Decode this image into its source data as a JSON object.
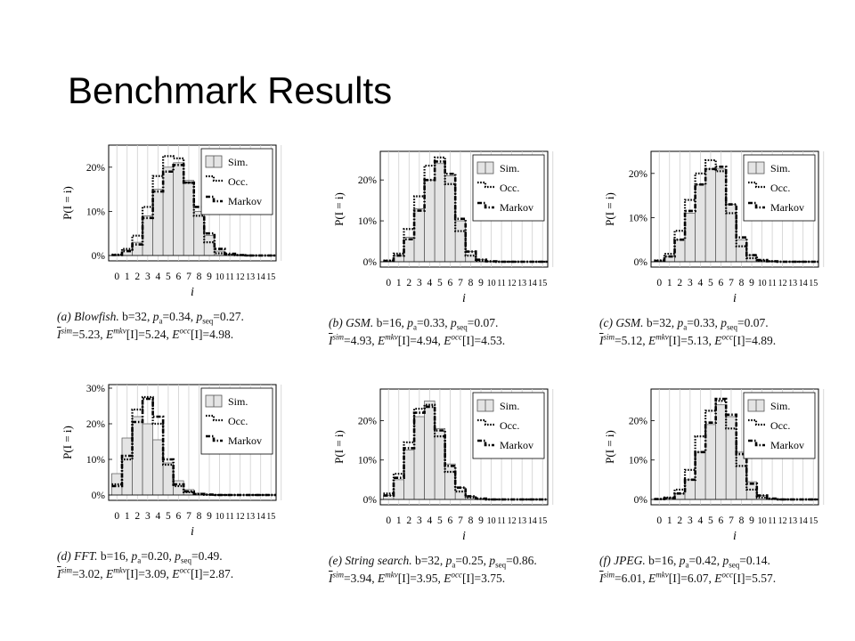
{
  "slide": {
    "title": "Benchmark Results"
  },
  "colors": {
    "bar_fill": "#e4e4e4",
    "bar_stroke": "#555555",
    "line": "#000000"
  },
  "legend_items": [
    "Sim.",
    "Occ.",
    "Markov"
  ],
  "chart_data": [
    {
      "type": "bar",
      "panel": "a",
      "x": [
        0,
        1,
        2,
        3,
        4,
        5,
        6,
        7,
        8,
        9,
        10,
        11,
        12,
        13,
        14,
        15
      ],
      "x_tick_labels": [
        "0",
        "1",
        "2",
        "3",
        "4",
        "5",
        "6",
        "7",
        "8",
        "9",
        "10",
        "11",
        "12",
        "13",
        "14",
        "15"
      ],
      "xlabel": "i",
      "ylabel": "P(I = i)",
      "ylim": [
        0,
        25
      ],
      "yticks": [
        0,
        10,
        20
      ],
      "ytick_labels": [
        "0%",
        "10%",
        "20%"
      ],
      "legend": "top-right",
      "grid": "vertical",
      "series": [
        {
          "name": "Sim.",
          "style": "bars",
          "values": [
            0.2,
            1.2,
            3.0,
            9.0,
            15.0,
            20.0,
            21.0,
            17.0,
            10.0,
            4.5,
            1.0,
            0.3,
            0.1,
            0,
            0,
            0
          ]
        },
        {
          "name": "Occ.",
          "style": "dotted-step",
          "values": [
            0.2,
            1.5,
            4.5,
            11.0,
            18.0,
            22.5,
            22.0,
            16.5,
            9.0,
            3.0,
            0.5,
            0.2,
            0.1,
            0,
            0,
            0
          ]
        },
        {
          "name": "Markov",
          "style": "dashdot-step",
          "values": [
            0.1,
            1.0,
            2.5,
            8.5,
            14.5,
            19.0,
            20.5,
            16.5,
            11.0,
            5.0,
            1.5,
            0.4,
            0.1,
            0,
            0,
            0
          ]
        }
      ],
      "caption": {
        "line1": "(a) Blowfish. b=32, p_a=0.34, p_seq=0.27.",
        "line2": "I^sim=5.23, E^mkv[I]=5.24, E^occ[I]=4.98."
      }
    },
    {
      "type": "bar",
      "panel": "b",
      "x": [
        0,
        1,
        2,
        3,
        4,
        5,
        6,
        7,
        8,
        9,
        10,
        11,
        12,
        13,
        14,
        15
      ],
      "x_tick_labels": [
        "0",
        "1",
        "2",
        "3",
        "4",
        "5",
        "6",
        "7",
        "8",
        "9",
        "10",
        "11",
        "12",
        "13",
        "14",
        "15"
      ],
      "xlabel": "i",
      "ylabel": "P(I = i)",
      "ylim": [
        0,
        27
      ],
      "yticks": [
        0,
        10,
        20
      ],
      "ytick_labels": [
        "0%",
        "10%",
        "20%"
      ],
      "legend": "top-right",
      "grid": "vertical",
      "series": [
        {
          "name": "Sim.",
          "style": "bars",
          "values": [
            0.2,
            1.5,
            6.0,
            13.0,
            20.0,
            24.0,
            21.0,
            10.0,
            2.5,
            0.5,
            0.1,
            0,
            0,
            0,
            0,
            0
          ]
        },
        {
          "name": "Occ.",
          "style": "dotted-step",
          "values": [
            0.3,
            2.0,
            8.0,
            16.0,
            23.5,
            25.5,
            19.0,
            7.5,
            1.5,
            0.2,
            0.1,
            0,
            0,
            0,
            0,
            0
          ]
        },
        {
          "name": "Markov",
          "style": "dashdot-step",
          "values": [
            0.2,
            1.5,
            5.5,
            12.5,
            20.0,
            24.5,
            21.5,
            10.5,
            2.5,
            0.5,
            0.1,
            0,
            0,
            0,
            0,
            0
          ]
        }
      ],
      "caption": {
        "line1": "(b) GSM. b=16, p_a=0.33, p_seq=0.07.",
        "line2": "I^sim=4.93, E^mkv[I]=4.94, E^occ[I]=4.53."
      }
    },
    {
      "type": "bar",
      "panel": "c",
      "x": [
        0,
        1,
        2,
        3,
        4,
        5,
        6,
        7,
        8,
        9,
        10,
        11,
        12,
        13,
        14,
        15
      ],
      "x_tick_labels": [
        "0",
        "1",
        "2",
        "3",
        "4",
        "5",
        "6",
        "7",
        "8",
        "9",
        "10",
        "11",
        "12",
        "13",
        "14",
        "15"
      ],
      "xlabel": "i",
      "ylabel": "P(I = i)",
      "ylim": [
        0,
        25
      ],
      "yticks": [
        0,
        10,
        20
      ],
      "ytick_labels": [
        "0%",
        "10%",
        "20%"
      ],
      "legend": "top-right",
      "grid": "vertical",
      "series": [
        {
          "name": "Sim.",
          "style": "bars",
          "values": [
            0.2,
            1.2,
            5.0,
            11.0,
            17.5,
            21.0,
            21.0,
            13.0,
            5.0,
            1.5,
            0.4,
            0.1,
            0,
            0,
            0,
            0
          ]
        },
        {
          "name": "Occ.",
          "style": "dotted-step",
          "values": [
            0.3,
            1.8,
            7.0,
            14.0,
            20.0,
            23.0,
            20.5,
            11.0,
            3.5,
            0.8,
            0.2,
            0.1,
            0,
            0,
            0,
            0
          ]
        },
        {
          "name": "Markov",
          "style": "dashdot-step",
          "values": [
            0.2,
            1.2,
            5.0,
            11.5,
            17.5,
            21.0,
            21.5,
            13.0,
            5.5,
            1.5,
            0.4,
            0.1,
            0,
            0,
            0,
            0
          ]
        }
      ],
      "caption": {
        "line1": "(c) GSM. b=32, p_a=0.33, p_seq=0.07.",
        "line2": "I^sim=5.12, E^mkv[I]=5.13, E^occ[I]=4.89."
      }
    },
    {
      "type": "bar",
      "panel": "d",
      "x": [
        0,
        1,
        2,
        3,
        4,
        5,
        6,
        7,
        8,
        9,
        10,
        11,
        12,
        13,
        14,
        15
      ],
      "x_tick_labels": [
        "0",
        "1",
        "2",
        "3",
        "4",
        "5",
        "6",
        "7",
        "8",
        "9",
        "10",
        "11",
        "12",
        "13",
        "14",
        "15"
      ],
      "xlabel": "i",
      "ylabel": "P(I = i)",
      "ylim": [
        0,
        31
      ],
      "yticks": [
        0,
        10,
        20,
        30
      ],
      "ytick_labels": [
        "0%",
        "10%",
        "20%",
        "30%"
      ],
      "legend": "top-right",
      "grid": "vertical",
      "series": [
        {
          "name": "Sim.",
          "style": "bars",
          "values": [
            6.0,
            16.0,
            22.0,
            20.0,
            15.5,
            9.0,
            4.0,
            1.5,
            0.5,
            0.2,
            0.1,
            0,
            0,
            0,
            0,
            0
          ]
        },
        {
          "name": "Occ.",
          "style": "dotted-step",
          "values": [
            3.0,
            10.0,
            24.0,
            27.5,
            20.0,
            8.5,
            2.5,
            0.8,
            0.2,
            0.1,
            0,
            0,
            0,
            0,
            0,
            0
          ]
        },
        {
          "name": "Markov",
          "style": "dashdot-step",
          "values": [
            2.5,
            11.0,
            20.5,
            27.0,
            22.0,
            10.0,
            3.0,
            1.0,
            0.3,
            0.1,
            0,
            0,
            0,
            0,
            0,
            0
          ]
        }
      ],
      "caption": {
        "line1": "(d) FFT. b=16, p_a=0.20, p_seq=0.49.",
        "line2": "I^sim=3.02, E^mkv[I]=3.09, E^occ[I]=2.87."
      }
    },
    {
      "type": "bar",
      "panel": "e",
      "x": [
        0,
        1,
        2,
        3,
        4,
        5,
        6,
        7,
        8,
        9,
        10,
        11,
        12,
        13,
        14,
        15
      ],
      "x_tick_labels": [
        "0",
        "1",
        "2",
        "3",
        "4",
        "5",
        "6",
        "7",
        "8",
        "9",
        "10",
        "11",
        "12",
        "13",
        "14",
        "15"
      ],
      "xlabel": "i",
      "ylabel": "P(I = i)",
      "ylim": [
        0,
        28
      ],
      "yticks": [
        0,
        10,
        20
      ],
      "ytick_labels": [
        "0%",
        "10%",
        "20%"
      ],
      "legend": "top-right",
      "grid": "vertical",
      "series": [
        {
          "name": "Sim.",
          "style": "bars",
          "values": [
            1.0,
            5.0,
            12.5,
            21.0,
            25.0,
            18.0,
            9.0,
            3.0,
            0.8,
            0.2,
            0.1,
            0,
            0,
            0,
            0,
            0
          ]
        },
        {
          "name": "Occ.",
          "style": "dotted-step",
          "values": [
            1.5,
            6.5,
            14.5,
            23.0,
            24.0,
            16.0,
            7.0,
            2.0,
            0.5,
            0.1,
            0,
            0,
            0,
            0,
            0,
            0
          ]
        },
        {
          "name": "Markov",
          "style": "dashdot-step",
          "values": [
            1.0,
            5.5,
            13.0,
            22.0,
            23.5,
            17.5,
            8.5,
            3.0,
            0.8,
            0.2,
            0,
            0,
            0,
            0,
            0,
            0
          ]
        }
      ],
      "caption": {
        "line1": "(e) String search. b=32, p_a=0.25, p_seq=0.86.",
        "line2": "I^sim=3.94, E^mkv[I]=3.95, E^occ[I]=3.75."
      }
    },
    {
      "type": "bar",
      "panel": "f",
      "x": [
        0,
        1,
        2,
        3,
        4,
        5,
        6,
        7,
        8,
        9,
        10,
        11,
        12,
        13,
        14,
        15
      ],
      "x_tick_labels": [
        "0",
        "1",
        "2",
        "3",
        "4",
        "5",
        "6",
        "7",
        "8",
        "9",
        "10",
        "11",
        "12",
        "13",
        "14",
        "15"
      ],
      "xlabel": "i",
      "ylabel": "P(I = i)",
      "ylim": [
        0,
        28
      ],
      "yticks": [
        0,
        10,
        20
      ],
      "ytick_labels": [
        "0%",
        "10%",
        "20%"
      ],
      "legend": "top-right",
      "grid": "vertical",
      "series": [
        {
          "name": "Sim.",
          "style": "bars",
          "values": [
            0.1,
            0.3,
            1.5,
            5.0,
            12.0,
            19.0,
            24.0,
            21.0,
            12.0,
            4.5,
            1.0,
            0.2,
            0.1,
            0,
            0,
            0
          ]
        },
        {
          "name": "Occ.",
          "style": "dotted-step",
          "values": [
            0.1,
            0.5,
            2.5,
            7.5,
            16.0,
            22.5,
            25.0,
            18.0,
            8.5,
            2.5,
            0.5,
            0.1,
            0,
            0,
            0,
            0
          ]
        },
        {
          "name": "Markov",
          "style": "dashdot-step",
          "values": [
            0.1,
            0.3,
            1.5,
            5.0,
            12.0,
            19.5,
            25.5,
            21.5,
            11.5,
            4.0,
            1.0,
            0.2,
            0,
            0,
            0,
            0
          ]
        }
      ],
      "caption": {
        "line1": "(f) JPEG. b=16, p_a=0.42, p_seq=0.14.",
        "line2": "I^sim=6.01, E^mkv[I]=6.07, E^occ[I]=5.57."
      }
    }
  ]
}
